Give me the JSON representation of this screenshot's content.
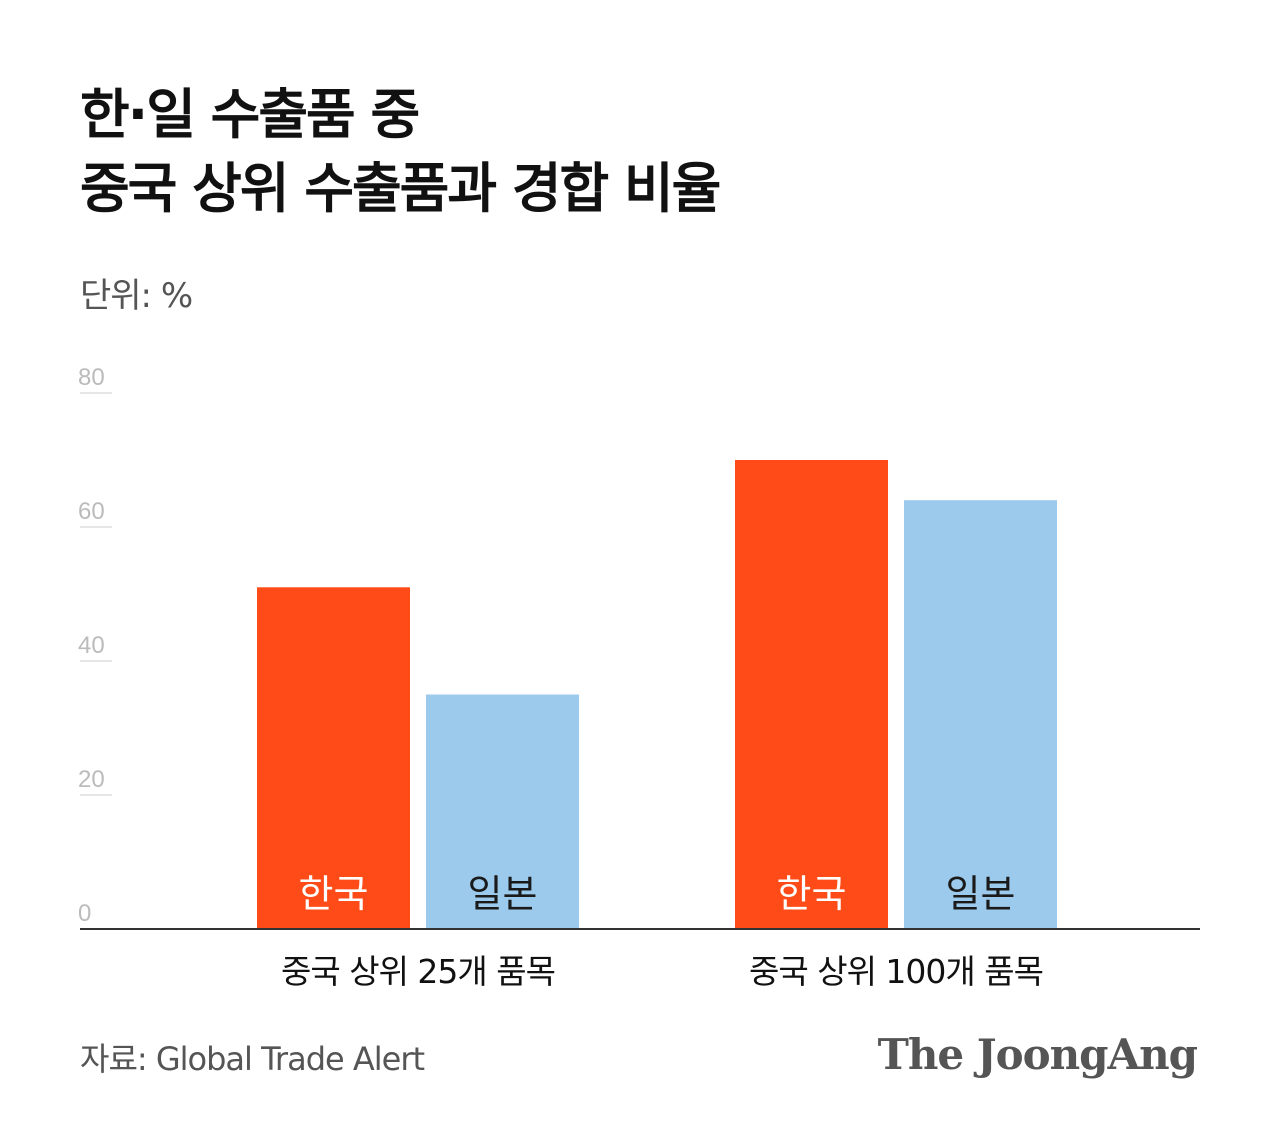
{
  "header": {
    "title_line1": "한·일 수출품 중",
    "title_line2": "중국 상위 수출품과 경합 비율",
    "unit": "단위: %"
  },
  "footer": {
    "source": "자료: Global Trade Alert",
    "brand": "The JoongAng"
  },
  "colors": {
    "korea": "#ff4b17",
    "japan": "#9ccaec",
    "axis": "#333333",
    "tick_text": "#bbbbbb",
    "gridline": "#dddddd"
  },
  "chart_data": {
    "type": "bar",
    "categories": [
      "중국 상위 25개 품목",
      "중국 상위 100개 품목"
    ],
    "series": [
      {
        "name": "한국",
        "values": [
          51,
          70
        ],
        "color": "#ff4b17",
        "label_color": "#ffffff"
      },
      {
        "name": "일본",
        "values": [
          35,
          64
        ],
        "color": "#9ccaec",
        "label_color": "#1a1a1a"
      }
    ],
    "ylim": [
      0,
      80
    ],
    "yticks": [
      "0",
      "20",
      "40",
      "60",
      "80"
    ],
    "legend": "inside-bars",
    "grid": false
  }
}
